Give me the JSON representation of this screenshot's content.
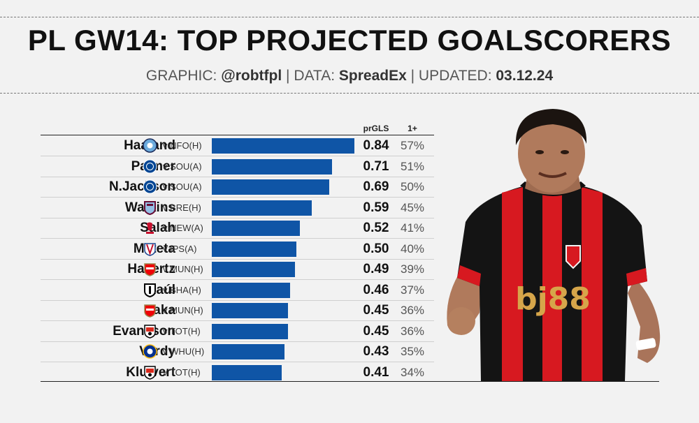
{
  "header": {
    "title": "PL GW14: TOP PROJECTED GOALSCORERS",
    "graphic_label": "GRAPHIC:",
    "graphic_value": "@robtfpl",
    "data_label": "DATA:",
    "data_value": "SpreadEx",
    "updated_label": "UPDATED:",
    "updated_value": "03.12.24"
  },
  "columns": {
    "projected": "prGLS",
    "one_plus": "1+"
  },
  "colors": {
    "bar": "#0f55a6",
    "background": "#f2f2f2",
    "bournemouth_red": "#d71920"
  },
  "chart_data": {
    "type": "bar",
    "orientation": "horizontal",
    "xlim": [
      0,
      0.84
    ],
    "categories": [
      "Haaland",
      "Palmer",
      "N.Jackson",
      "Watkins",
      "Salah",
      "Mateta",
      "Havertz",
      "Raúl",
      "Saka",
      "Evanilson",
      "Vardy",
      "Kluivert"
    ],
    "series": [
      {
        "name": "prGLS",
        "values": [
          0.84,
          0.71,
          0.69,
          0.59,
          0.52,
          0.5,
          0.49,
          0.46,
          0.45,
          0.45,
          0.43,
          0.41
        ]
      }
    ],
    "rows": [
      {
        "name": "Haaland",
        "fixture": "v NFO(H)",
        "value": "0.84",
        "v": 0.84,
        "pct": "57%",
        "badge": "man-city-badge"
      },
      {
        "name": "Palmer",
        "fixture": "v SOU(A)",
        "value": "0.71",
        "v": 0.71,
        "pct": "51%",
        "badge": "chelsea-badge"
      },
      {
        "name": "N.Jackson",
        "fixture": "v SOU(A)",
        "value": "0.69",
        "v": 0.69,
        "pct": "50%",
        "badge": "chelsea-badge"
      },
      {
        "name": "Watkins",
        "fixture": "v BRE(H)",
        "value": "0.59",
        "v": 0.59,
        "pct": "45%",
        "badge": "aston-villa-badge"
      },
      {
        "name": "Salah",
        "fixture": "v NEW(A)",
        "value": "0.52",
        "v": 0.52,
        "pct": "41%",
        "badge": "liverpool-badge"
      },
      {
        "name": "Mateta",
        "fixture": "v IPS(A)",
        "value": "0.50",
        "v": 0.5,
        "pct": "40%",
        "badge": "crystal-palace-badge"
      },
      {
        "name": "Havertz",
        "fixture": "v MUN(H)",
        "value": "0.49",
        "v": 0.49,
        "pct": "39%",
        "badge": "arsenal-badge"
      },
      {
        "name": "Raúl",
        "fixture": "v BHA(H)",
        "value": "0.46",
        "v": 0.46,
        "pct": "37%",
        "badge": "fulham-badge"
      },
      {
        "name": "Saka",
        "fixture": "v MUN(H)",
        "value": "0.45",
        "v": 0.45,
        "pct": "36%",
        "badge": "arsenal-badge"
      },
      {
        "name": "Evanilson",
        "fixture": "v TOT(H)",
        "value": "0.45",
        "v": 0.45,
        "pct": "36%",
        "badge": "bournemouth-badge"
      },
      {
        "name": "Vardy",
        "fixture": "v WHU(H)",
        "value": "0.43",
        "v": 0.43,
        "pct": "35%",
        "badge": "leicester-badge"
      },
      {
        "name": "Kluivert",
        "fixture": "v TOT(H)",
        "value": "0.41",
        "v": 0.41,
        "pct": "34%",
        "badge": "bournemouth-badge"
      }
    ]
  },
  "player_image": {
    "description_icon": "player-photo",
    "shirt_sponsor": "bj88"
  }
}
